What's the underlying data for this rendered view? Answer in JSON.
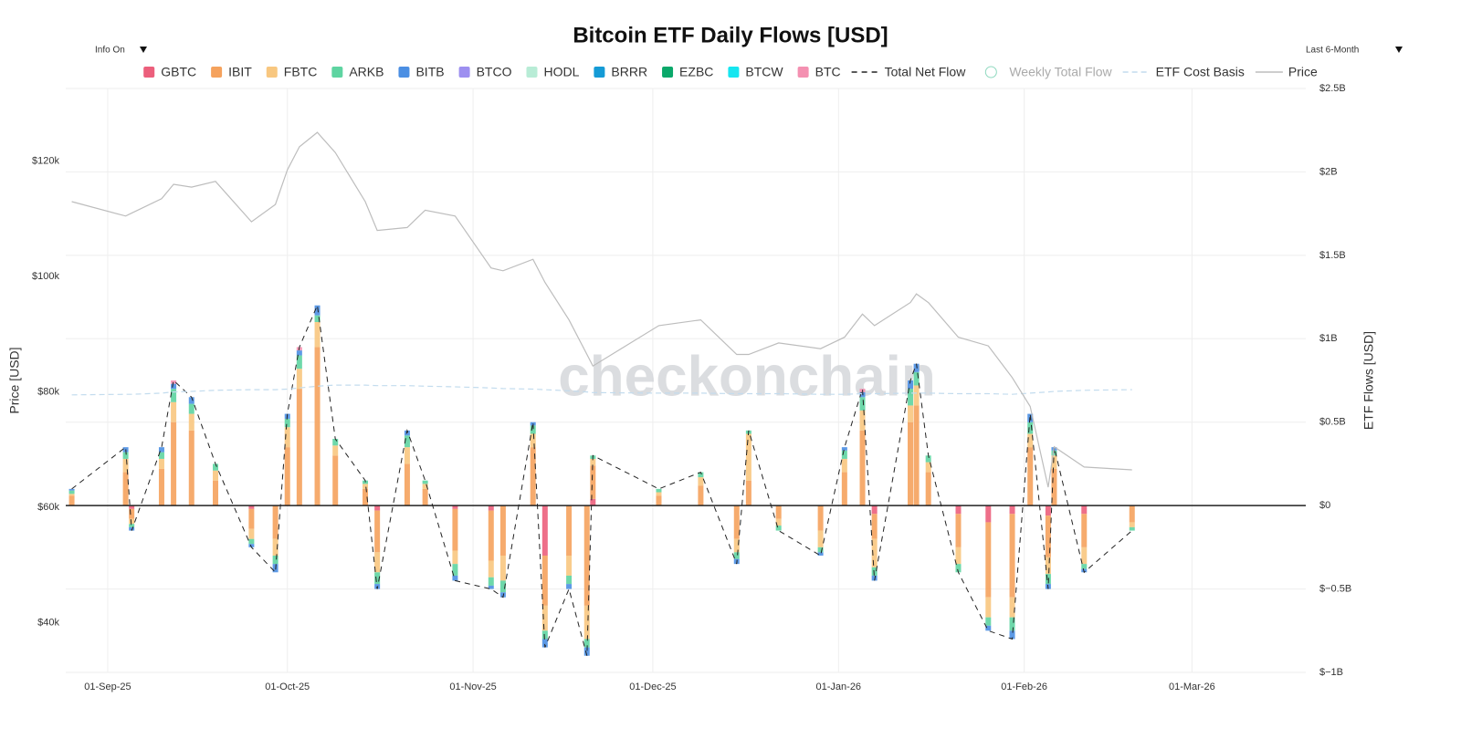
{
  "controls": {
    "left": "Info On",
    "right": "Last 6-Month"
  },
  "chart_data": {
    "type": "bar",
    "barmode": "relative",
    "title": "Bitcoin ETF Daily Flows [USD]",
    "watermark": "checkonchain",
    "ylabel": "Price [USD]",
    "y2label": "ETF Flows [USD]",
    "grid": true,
    "x": [
      "2025-08-26",
      "2025-09-04",
      "2025-09-05",
      "2025-09-10",
      "2025-09-12",
      "2025-09-15",
      "2025-09-19",
      "2025-09-25",
      "2025-09-29",
      "2025-10-01",
      "2025-10-03",
      "2025-10-06",
      "2025-10-09",
      "2025-10-14",
      "2025-10-16",
      "2025-10-21",
      "2025-10-24",
      "2025-10-29",
      "2025-11-04",
      "2025-11-06",
      "2025-11-11",
      "2025-11-13",
      "2025-11-17",
      "2025-11-20",
      "2025-11-21",
      "2025-12-02",
      "2025-12-09",
      "2025-12-15",
      "2025-12-17",
      "2025-12-22",
      "2025-12-29",
      "2026-01-02",
      "2026-01-05",
      "2026-01-07",
      "2026-01-13",
      "2026-01-14",
      "2026-01-16",
      "2026-01-21",
      "2026-01-26",
      "2026-01-30",
      "2026-02-02",
      "2026-02-05",
      "2026-02-06",
      "2026-02-11",
      "2026-02-19"
    ],
    "xlim": [
      "2025-08-25",
      "2026-03-20"
    ],
    "xticks": [
      {
        "value": "2025-09-01",
        "label": "01-Sep-25"
      },
      {
        "value": "2025-10-01",
        "label": "01-Oct-25"
      },
      {
        "value": "2025-11-01",
        "label": "01-Nov-25"
      },
      {
        "value": "2025-12-01",
        "label": "01-Dec-25"
      },
      {
        "value": "2026-01-01",
        "label": "01-Jan-26"
      },
      {
        "value": "2026-02-01",
        "label": "01-Feb-26"
      },
      {
        "value": "2026-03-01",
        "label": "01-Mar-26"
      }
    ],
    "ylim": [
      31400,
      132600
    ],
    "yticks": [
      {
        "value": 40000,
        "label": "$40k"
      },
      {
        "value": 60000,
        "label": "$60k"
      },
      {
        "value": 80000,
        "label": "$80k"
      },
      {
        "value": 100000,
        "label": "$100k"
      },
      {
        "value": 120000,
        "label": "$120k"
      }
    ],
    "y2lim": [
      -1000000000.0,
      2500000000.0
    ],
    "y2ticks": [
      {
        "value": -1000000000.0,
        "label": "$−1B"
      },
      {
        "value": -500000000.0,
        "label": "$−0.5B"
      },
      {
        "value": 0,
        "label": "$0"
      },
      {
        "value": 500000000.0,
        "label": "$0.5B"
      },
      {
        "value": 1000000000.0,
        "label": "$1B"
      },
      {
        "value": 1500000000.0,
        "label": "$1.5B"
      },
      {
        "value": 2000000000.0,
        "label": "$2B"
      },
      {
        "value": 2500000000.0,
        "label": "$2.5B"
      }
    ],
    "series": [
      {
        "name": "GBTC",
        "color": "#ec5f7c",
        "axis": "y2",
        "values": [
          0,
          0,
          -20000000.0,
          0,
          0,
          0,
          0,
          -20000000.0,
          0,
          0,
          0,
          0,
          0,
          0,
          -30000000.0,
          0,
          0,
          -20000000.0,
          -30000000.0,
          0,
          0,
          -300000000.0,
          0,
          0,
          40000000.0,
          0,
          0,
          0,
          0,
          0,
          0,
          0,
          0,
          -50000000.0,
          0,
          0,
          0,
          -50000000.0,
          -100000000.0,
          -50000000.0,
          0,
          -60000000.0,
          0,
          -50000000.0,
          0
        ]
      },
      {
        "name": "IBIT",
        "color": "#f5a25d",
        "axis": "y2",
        "values": [
          60000000.0,
          200000000.0,
          -60000000.0,
          220000000.0,
          500000000.0,
          450000000.0,
          150000000.0,
          -120000000.0,
          -200000000.0,
          350000000.0,
          700000000.0,
          950000000.0,
          300000000.0,
          100000000.0,
          -250000000.0,
          250000000.0,
          100000000.0,
          -250000000.0,
          -300000000.0,
          -300000000.0,
          350000000.0,
          -300000000.0,
          -300000000.0,
          -600000000.0,
          200000000.0,
          60000000.0,
          120000000.0,
          -200000000.0,
          150000000.0,
          -80000000.0,
          -150000000.0,
          200000000.0,
          450000000.0,
          -150000000.0,
          500000000.0,
          600000000.0,
          200000000.0,
          -200000000.0,
          -450000000.0,
          -500000000.0,
          350000000.0,
          -250000000.0,
          220000000.0,
          -200000000.0,
          -100000000.0
        ]
      },
      {
        "name": "FBTC",
        "color": "#f8c780",
        "axis": "y2",
        "values": [
          10000000.0,
          80000000.0,
          -30000000.0,
          60000000.0,
          120000000.0,
          100000000.0,
          60000000.0,
          -60000000.0,
          -100000000.0,
          120000000.0,
          120000000.0,
          150000000.0,
          60000000.0,
          30000000.0,
          -120000000.0,
          100000000.0,
          30000000.0,
          -80000000.0,
          -100000000.0,
          -150000000.0,
          80000000.0,
          -150000000.0,
          -120000000.0,
          -200000000.0,
          40000000.0,
          20000000.0,
          50000000.0,
          -80000000.0,
          280000000.0,
          -40000000.0,
          -100000000.0,
          80000000.0,
          120000000.0,
          -170000000.0,
          100000000.0,
          120000000.0,
          60000000.0,
          -100000000.0,
          -120000000.0,
          -120000000.0,
          80000000.0,
          -100000000.0,
          80000000.0,
          -100000000.0,
          -30000000.0
        ]
      },
      {
        "name": "ARKB",
        "color": "#5ed4a1",
        "axis": "y2",
        "values": [
          20000000.0,
          40000000.0,
          -20000000.0,
          40000000.0,
          80000000.0,
          60000000.0,
          40000000.0,
          -30000000.0,
          -50000000.0,
          50000000.0,
          80000000.0,
          40000000.0,
          40000000.0,
          20000000.0,
          -70000000.0,
          70000000.0,
          20000000.0,
          -70000000.0,
          -50000000.0,
          -70000000.0,
          50000000.0,
          -50000000.0,
          -50000000.0,
          -50000000.0,
          20000000.0,
          20000000.0,
          30000000.0,
          -40000000.0,
          20000000.0,
          -30000000.0,
          -30000000.0,
          50000000.0,
          80000000.0,
          -50000000.0,
          100000000.0,
          80000000.0,
          40000000.0,
          -50000000.0,
          -50000000.0,
          -80000000.0,
          70000000.0,
          -60000000.0,
          30000000.0,
          -30000000.0,
          -20000000.0
        ]
      },
      {
        "name": "BITB",
        "color": "#4b8fe3",
        "axis": "y2",
        "values": [
          10000000.0,
          30000000.0,
          -20000000.0,
          30000000.0,
          30000000.0,
          40000000.0,
          0,
          -20000000.0,
          -50000000.0,
          30000000.0,
          30000000.0,
          60000000.0,
          0,
          0,
          -30000000.0,
          30000000.0,
          0,
          -30000000.0,
          -20000000.0,
          -30000000.0,
          20000000.0,
          -50000000.0,
          -30000000.0,
          -50000000.0,
          0,
          0,
          0,
          -30000000.0,
          0,
          0,
          -20000000.0,
          20000000.0,
          30000000.0,
          -30000000.0,
          50000000.0,
          50000000.0,
          0,
          0,
          -30000000.0,
          -50000000.0,
          50000000.0,
          -30000000.0,
          20000000.0,
          -20000000.0,
          0
        ]
      },
      {
        "name": "BTCO",
        "color": "#9d8ff0",
        "axis": "y2",
        "values": [
          0,
          0,
          0,
          0,
          0,
          0,
          0,
          0,
          0,
          0,
          0,
          0,
          0,
          0,
          0,
          0,
          0,
          0,
          0,
          0,
          0,
          0,
          0,
          0,
          0,
          0,
          0,
          0,
          0,
          0,
          0,
          0,
          0,
          0,
          0,
          0,
          0,
          0,
          0,
          0,
          0,
          0,
          0,
          0,
          0
        ]
      },
      {
        "name": "HODL",
        "color": "#b8ecd6",
        "axis": "y2",
        "values": [
          0,
          0,
          0,
          0,
          0,
          0,
          0,
          0,
          0,
          0,
          0,
          0,
          0,
          0,
          0,
          0,
          0,
          0,
          0,
          0,
          0,
          0,
          0,
          0,
          0,
          0,
          0,
          0,
          0,
          0,
          0,
          0,
          0,
          0,
          0,
          0,
          0,
          0,
          0,
          0,
          0,
          0,
          0,
          0,
          0
        ]
      },
      {
        "name": "BRRR",
        "color": "#159bd6",
        "axis": "y2",
        "values": [
          0,
          0,
          0,
          0,
          0,
          0,
          0,
          0,
          0,
          0,
          0,
          0,
          0,
          0,
          0,
          0,
          0,
          0,
          0,
          0,
          0,
          0,
          0,
          0,
          0,
          0,
          0,
          0,
          0,
          0,
          0,
          0,
          0,
          0,
          0,
          0,
          0,
          0,
          0,
          0,
          0,
          0,
          0,
          0,
          0
        ]
      },
      {
        "name": "EZBC",
        "color": "#0aa86a",
        "axis": "y2",
        "values": [
          0,
          0,
          0,
          0,
          0,
          0,
          0,
          0,
          0,
          0,
          0,
          0,
          0,
          0,
          0,
          0,
          0,
          0,
          0,
          0,
          0,
          0,
          0,
          0,
          0,
          0,
          0,
          0,
          0,
          0,
          0,
          0,
          0,
          0,
          0,
          0,
          0,
          0,
          0,
          0,
          0,
          0,
          0,
          0,
          0
        ]
      },
      {
        "name": "BTCW",
        "color": "#16e6f0",
        "axis": "y2",
        "values": [
          0,
          0,
          0,
          0,
          0,
          0,
          0,
          0,
          0,
          0,
          0,
          0,
          0,
          0,
          0,
          0,
          0,
          0,
          0,
          0,
          0,
          0,
          0,
          0,
          0,
          0,
          0,
          0,
          0,
          0,
          0,
          0,
          0,
          0,
          0,
          0,
          0,
          0,
          0,
          0,
          0,
          0,
          0,
          0,
          0
        ]
      },
      {
        "name": "BTC",
        "color": "#f490b1",
        "axis": "y2",
        "values": [
          0,
          0,
          0,
          0,
          20000000.0,
          0,
          0,
          0,
          0,
          0,
          20000000.0,
          0,
          0,
          0,
          0,
          0,
          0,
          0,
          0,
          0,
          0,
          0,
          0,
          0,
          0,
          0,
          0,
          0,
          0,
          0,
          0,
          0,
          20000000.0,
          0,
          0,
          0,
          0,
          0,
          0,
          0,
          0,
          0,
          0,
          0,
          0
        ]
      },
      {
        "name": "Total Net Flow",
        "type": "line",
        "dash": "6,5",
        "color": "#222222",
        "axis": "y2",
        "values": [
          100000000.0,
          350000000.0,
          -150000000.0,
          350000000.0,
          750000000.0,
          650000000.0,
          250000000.0,
          -250000000.0,
          -400000000.0,
          550000000.0,
          950000000.0,
          1200000000.0,
          400000000.0,
          150000000.0,
          -500000000.0,
          450000000.0,
          150000000.0,
          -450000000.0,
          -500000000.0,
          -550000000.0,
          500000000.0,
          -850000000.0,
          -500000000.0,
          -900000000.0,
          300000000.0,
          100000000.0,
          200000000.0,
          -350000000.0,
          450000000.0,
          -150000000.0,
          -300000000.0,
          350000000.0,
          700000000.0,
          -450000000.0,
          750000000.0,
          850000000.0,
          300000000.0,
          -400000000.0,
          -750000000.0,
          -800000000.0,
          550000000.0,
          -500000000.0,
          350000000.0,
          -400000000.0,
          -150000000.0
        ]
      },
      {
        "name": "ETF Cost Basis",
        "type": "line",
        "dash": "6,4",
        "color": "#c3dcee",
        "axis": "y",
        "values": [
          79500,
          79600,
          79600,
          79800,
          80000,
          80100,
          80300,
          80400,
          80400,
          80500,
          80700,
          81000,
          81200,
          81200,
          81100,
          81100,
          81000,
          80900,
          80700,
          80600,
          80500,
          80400,
          80200,
          80000,
          79900,
          79800,
          79800,
          79700,
          79700,
          79700,
          79600,
          79600,
          79700,
          79700,
          79800,
          79800,
          79800,
          79700,
          79700,
          79600,
          79800,
          80000,
          80100,
          80300,
          80400
        ]
      },
      {
        "name": "Price",
        "type": "line",
        "color": "#bdbdbd",
        "axis": "y",
        "values": [
          113000,
          110500,
          111000,
          113500,
          116000,
          115500,
          116500,
          109500,
          112500,
          118500,
          122500,
          125000,
          121500,
          113000,
          108000,
          108500,
          111500,
          110500,
          101500,
          101000,
          103000,
          99000,
          92500,
          86500,
          84500,
          91500,
          92500,
          86500,
          86500,
          88500,
          87500,
          89500,
          93500,
          91500,
          95500,
          97000,
          95500,
          89500,
          88000,
          82500,
          77500,
          63500,
          70500,
          67000,
          66500
        ]
      }
    ],
    "hidden_series": [
      {
        "name": "Weekly Total Flow",
        "color": "#8fd9bf"
      }
    ]
  }
}
